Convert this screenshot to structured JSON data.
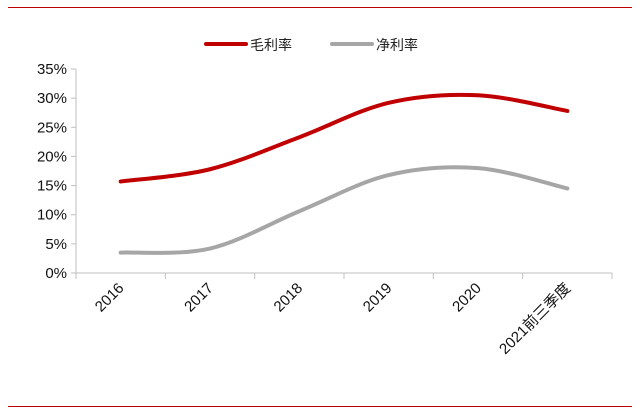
{
  "colors": {
    "accent_rule": "#c00000",
    "axis": "#bfbfbf"
  },
  "chart_data": {
    "type": "line",
    "title": "",
    "xlabel": "",
    "ylabel": "",
    "categories": [
      "2016",
      "2017",
      "2018",
      "2019",
      "2020",
      "2021前三季度"
    ],
    "series": [
      {
        "name": "毛利率",
        "color": "#c00000",
        "values": [
          15.7,
          17.8,
          23.3,
          29.2,
          30.5,
          27.8
        ]
      },
      {
        "name": "净利率",
        "color": "#a6a6a6",
        "values": [
          3.5,
          4.2,
          10.6,
          16.8,
          18.0,
          14.5
        ]
      }
    ],
    "ylim": [
      0,
      35
    ],
    "y_ticks": [
      "0%",
      "5%",
      "10%",
      "15%",
      "20%",
      "25%",
      "30%",
      "35%"
    ],
    "legend_position": "top-center",
    "grid": false
  }
}
